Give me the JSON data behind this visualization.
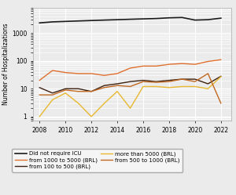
{
  "years": [
    2008,
    2009,
    2010,
    2011,
    2012,
    2013,
    2014,
    2015,
    2016,
    2017,
    2018,
    2019,
    2020,
    2021,
    2022
  ],
  "series": [
    {
      "label": "Did not require ICU",
      "color": "#1a1a1a",
      "linewidth": 1.2,
      "values": [
        2300,
        2500,
        2600,
        2700,
        2800,
        2900,
        3000,
        3100,
        3200,
        3300,
        3500,
        3600,
        2900,
        3000,
        3400
      ]
    },
    {
      "label": "from 1000 to 5000 (BRL)",
      "color": "#e07030",
      "linewidth": 1.0,
      "values": [
        20,
        45,
        38,
        35,
        35,
        30,
        35,
        55,
        65,
        65,
        75,
        80,
        75,
        95,
        110
      ]
    },
    {
      "label": "from 100 to 500 (BRL)",
      "color": "#3d2010",
      "linewidth": 1.0,
      "values": [
        11,
        7,
        10,
        10,
        8,
        13,
        15,
        18,
        20,
        18,
        20,
        22,
        22,
        15,
        28
      ]
    },
    {
      "label": "more than 5000 (BRL)",
      "color": "#e8b830",
      "linewidth": 1.0,
      "values": [
        1,
        4,
        7,
        3,
        1,
        3,
        8,
        2,
        12,
        12,
        11,
        12,
        12,
        10,
        27
      ]
    },
    {
      "label": "from 500 to 1000 (BRL)",
      "color": "#c06820",
      "linewidth": 1.0,
      "values": [
        6,
        6,
        9,
        8,
        8,
        11,
        13,
        12,
        18,
        17,
        18,
        22,
        18,
        35,
        3
      ]
    }
  ],
  "ylabel": "Number of Hospitalizations",
  "xlim": [
    2007.5,
    2022.8
  ],
  "ylim": [
    0.7,
    8000
  ],
  "xticks": [
    2008,
    2010,
    2012,
    2014,
    2016,
    2018,
    2020,
    2022
  ],
  "yticks": [
    1,
    10,
    100,
    1000
  ],
  "ytick_labels": [
    "1",
    "10",
    "100",
    "1000"
  ],
  "background_color": "#ebebeb",
  "grid_color": "#ffffff",
  "legend_order": [
    "Did not require ICU",
    "from 1000 to 5000 (BRL)",
    "from 100 to 500 (BRL)",
    "more than 5000 (BRL)",
    "from 500 to 1000 (BRL)"
  ]
}
